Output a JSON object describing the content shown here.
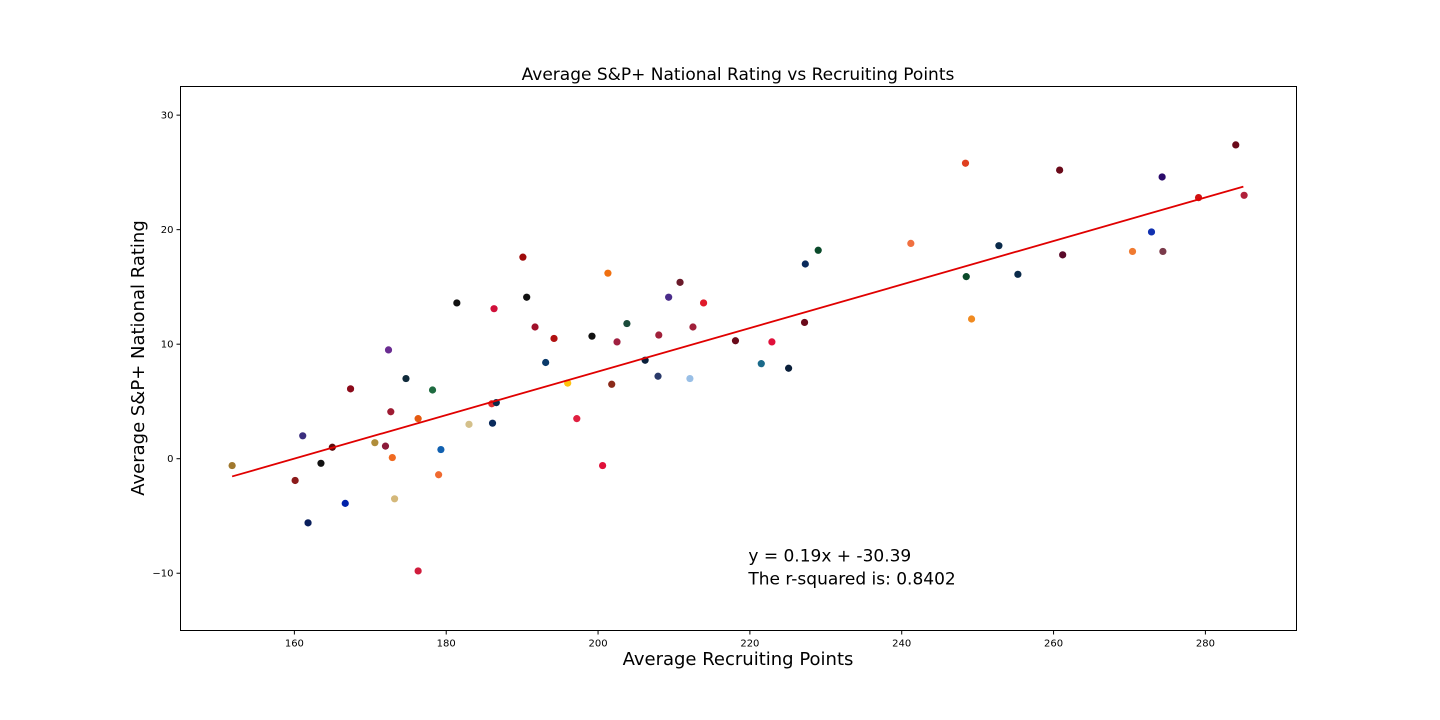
{
  "chart_data": {
    "type": "scatter",
    "title": "Average S&P+ National Rating vs Recruiting Points",
    "xlabel": "Average Recruiting Points",
    "ylabel": "Average S&P+ National Rating",
    "xlim": [
      145,
      292
    ],
    "ylim": [
      -15,
      32.5
    ],
    "xticks": [
      160,
      180,
      200,
      220,
      240,
      260,
      280
    ],
    "xtick_labels": [
      "160",
      "180",
      "200",
      "220",
      "240",
      "260",
      "280"
    ],
    "yticks": [
      -10,
      0,
      10,
      20,
      30
    ],
    "ytick_labels": [
      "−10",
      "0",
      "10",
      "20",
      "30"
    ],
    "grid": false,
    "legend": "none",
    "annotation": {
      "line1": "y = 0.19x + -30.39",
      "line2": "The r-squared is: 0.8402",
      "position": [
        219.8,
        -11.0
      ]
    },
    "regression": {
      "slope": 0.19,
      "intercept": -30.39,
      "x_range": [
        151.8,
        285.0
      ],
      "color": "#e00000"
    },
    "points": [
      {
        "x": 151.8,
        "y": -0.6,
        "color": "#a0782d"
      },
      {
        "x": 160.1,
        "y": -1.9,
        "color": "#8b1a1a"
      },
      {
        "x": 161.1,
        "y": 2.0,
        "color": "#3b2e7e"
      },
      {
        "x": 161.8,
        "y": -5.6,
        "color": "#0a1f5c"
      },
      {
        "x": 163.5,
        "y": -0.4,
        "color": "#111111"
      },
      {
        "x": 165.0,
        "y": 1.0,
        "color": "#5c0a0a"
      },
      {
        "x": 166.7,
        "y": -3.9,
        "color": "#0022aa"
      },
      {
        "x": 167.4,
        "y": 6.1,
        "color": "#8b0a1a"
      },
      {
        "x": 170.6,
        "y": 1.4,
        "color": "#b08d3a"
      },
      {
        "x": 172.0,
        "y": 1.1,
        "color": "#8b1a3a"
      },
      {
        "x": 172.4,
        "y": 9.5,
        "color": "#6a2c91"
      },
      {
        "x": 172.7,
        "y": 4.1,
        "color": "#9e1b32"
      },
      {
        "x": 172.9,
        "y": 0.1,
        "color": "#f06a20"
      },
      {
        "x": 173.2,
        "y": -3.5,
        "color": "#d4b87a"
      },
      {
        "x": 174.7,
        "y": 7.0,
        "color": "#0f2a3a"
      },
      {
        "x": 176.3,
        "y": 3.5,
        "color": "#e55a10"
      },
      {
        "x": 176.3,
        "y": -9.8,
        "color": "#d01c3c"
      },
      {
        "x": 178.2,
        "y": 6.0,
        "color": "#1e6b40"
      },
      {
        "x": 179.0,
        "y": -1.4,
        "color": "#f06a30"
      },
      {
        "x": 179.3,
        "y": 0.8,
        "color": "#1060b0"
      },
      {
        "x": 181.4,
        "y": 13.6,
        "color": "#111111"
      },
      {
        "x": 183.0,
        "y": 3.0,
        "color": "#d4c08a"
      },
      {
        "x": 186.0,
        "y": 4.8,
        "color": "#e03030"
      },
      {
        "x": 186.1,
        "y": 3.1,
        "color": "#0a2a5c"
      },
      {
        "x": 186.3,
        "y": 13.1,
        "color": "#d0103a"
      },
      {
        "x": 186.6,
        "y": 4.9,
        "color": "#0a2a4a"
      },
      {
        "x": 190.1,
        "y": 17.6,
        "color": "#9e0a0a"
      },
      {
        "x": 190.6,
        "y": 14.1,
        "color": "#111111"
      },
      {
        "x": 191.7,
        "y": 11.5,
        "color": "#a0102a"
      },
      {
        "x": 193.1,
        "y": 8.4,
        "color": "#0a3a6a"
      },
      {
        "x": 194.2,
        "y": 10.5,
        "color": "#b01010"
      },
      {
        "x": 196.0,
        "y": 6.6,
        "color": "#ffc20e"
      },
      {
        "x": 197.2,
        "y": 3.5,
        "color": "#e02040"
      },
      {
        "x": 199.2,
        "y": 10.7,
        "color": "#111111"
      },
      {
        "x": 200.6,
        "y": -0.6,
        "color": "#e0103a"
      },
      {
        "x": 201.3,
        "y": 16.2,
        "color": "#f07010"
      },
      {
        "x": 201.8,
        "y": 6.5,
        "color": "#8b2a1a"
      },
      {
        "x": 202.5,
        "y": 10.2,
        "color": "#a02040"
      },
      {
        "x": 203.8,
        "y": 11.8,
        "color": "#1a4a3a"
      },
      {
        "x": 206.2,
        "y": 8.6,
        "color": "#0a1f3a"
      },
      {
        "x": 207.9,
        "y": 7.2,
        "color": "#2a3a6a"
      },
      {
        "x": 208.0,
        "y": 10.8,
        "color": "#a0203a"
      },
      {
        "x": 209.3,
        "y": 14.1,
        "color": "#4a2c8a"
      },
      {
        "x": 210.8,
        "y": 15.4,
        "color": "#6a1a2a"
      },
      {
        "x": 212.1,
        "y": 7.0,
        "color": "#99bfe6"
      },
      {
        "x": 212.5,
        "y": 11.5,
        "color": "#a0203a"
      },
      {
        "x": 213.9,
        "y": 13.6,
        "color": "#e01a2a"
      },
      {
        "x": 218.1,
        "y": 10.3,
        "color": "#6a0a1a"
      },
      {
        "x": 221.5,
        "y": 8.3,
        "color": "#1a6a8a"
      },
      {
        "x": 222.9,
        "y": 10.2,
        "color": "#e0103a"
      },
      {
        "x": 225.1,
        "y": 7.9,
        "color": "#0a1f3a"
      },
      {
        "x": 227.2,
        "y": 11.9,
        "color": "#6a0a1a"
      },
      {
        "x": 227.3,
        "y": 17.0,
        "color": "#0a2a5c"
      },
      {
        "x": 229.0,
        "y": 18.2,
        "color": "#0a4a2a"
      },
      {
        "x": 241.2,
        "y": 18.8,
        "color": "#f07040"
      },
      {
        "x": 248.4,
        "y": 25.8,
        "color": "#e04020"
      },
      {
        "x": 248.5,
        "y": 15.9,
        "color": "#0a4a2a"
      },
      {
        "x": 249.2,
        "y": 12.2,
        "color": "#f08a20"
      },
      {
        "x": 252.8,
        "y": 18.6,
        "color": "#0a2a4a"
      },
      {
        "x": 255.3,
        "y": 16.1,
        "color": "#0a2a4a"
      },
      {
        "x": 260.8,
        "y": 25.2,
        "color": "#6a0a1a"
      },
      {
        "x": 261.2,
        "y": 17.8,
        "color": "#5a0a2a"
      },
      {
        "x": 270.4,
        "y": 18.1,
        "color": "#f07a30"
      },
      {
        "x": 272.9,
        "y": 19.8,
        "color": "#1030b0"
      },
      {
        "x": 274.3,
        "y": 24.6,
        "color": "#2a0a6a"
      },
      {
        "x": 274.4,
        "y": 18.1,
        "color": "#7a3a4a"
      },
      {
        "x": 279.1,
        "y": 22.8,
        "color": "#d01010"
      },
      {
        "x": 284.0,
        "y": 27.4,
        "color": "#6a0a1a"
      },
      {
        "x": 285.1,
        "y": 23.0,
        "color": "#b0203a"
      }
    ]
  }
}
